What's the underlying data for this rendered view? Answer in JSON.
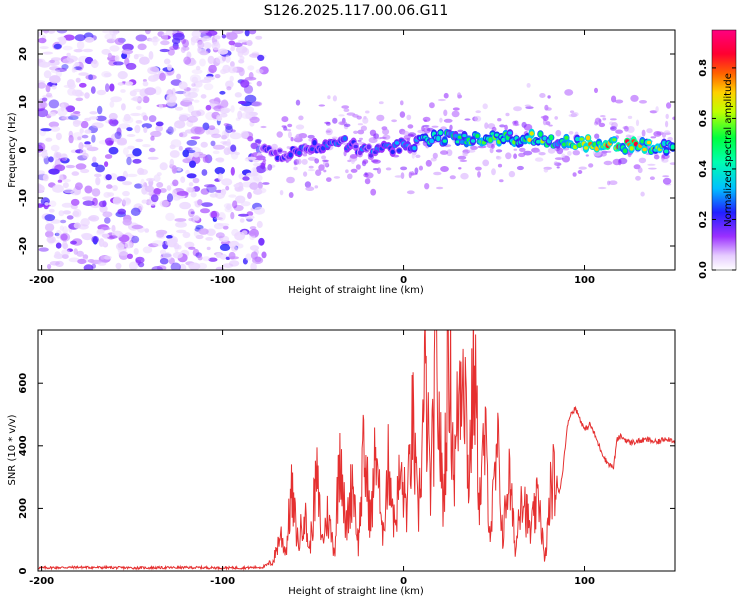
{
  "title": "S126.2025.117.00.06.G11",
  "chart_data": [
    {
      "type": "heatmap",
      "xlabel": "Height of straight line (km)",
      "ylabel": "Frequency (Hz)",
      "xlim": [
        -202,
        150
      ],
      "ylim": [
        -25,
        25
      ],
      "xticks": [
        -200,
        -100,
        0,
        100
      ],
      "yticks": [
        -20,
        -10,
        0,
        10,
        20
      ],
      "colorbar": {
        "label": "Normalized spectral amplitude",
        "range": [
          0.0,
          0.95
        ],
        "ticks": [
          0.0,
          0.2,
          0.4,
          0.6,
          0.8
        ],
        "colors": [
          "#ffffff",
          "#d9b3ff",
          "#9b30ff",
          "#2020ff",
          "#00e5ff",
          "#00ff40",
          "#ffff00",
          "#ff8000",
          "#ff0040",
          "#ff0080"
        ]
      },
      "noise_region_end_km": -77,
      "ridge": [
        {
          "x": -78,
          "f": 0.0,
          "amp": 0.22
        },
        {
          "x": -65,
          "f": -1.0,
          "amp": 0.25
        },
        {
          "x": -50,
          "f": 0.5,
          "amp": 0.3
        },
        {
          "x": -35,
          "f": 2.0,
          "amp": 0.3
        },
        {
          "x": -20,
          "f": -0.5,
          "amp": 0.3
        },
        {
          "x": 0,
          "f": 1.0,
          "amp": 0.33
        },
        {
          "x": 20,
          "f": 2.5,
          "amp": 0.5
        },
        {
          "x": 40,
          "f": 2.5,
          "amp": 0.6
        },
        {
          "x": 60,
          "f": 2.5,
          "amp": 0.6
        },
        {
          "x": 70,
          "f": 2.5,
          "amp": 0.75
        },
        {
          "x": 85,
          "f": 1.8,
          "amp": 0.5
        },
        {
          "x": 100,
          "f": 1.5,
          "amp": 0.8
        },
        {
          "x": 127,
          "f": 0.8,
          "amp": 0.9
        },
        {
          "x": 150,
          "f": 0.5,
          "amp": 0.5
        }
      ]
    },
    {
      "type": "line",
      "xlabel": "Height of straight line (km)",
      "ylabel": "SNR (10 * v/v)",
      "xlim": [
        -202,
        150
      ],
      "ylim": [
        0,
        770
      ],
      "xticks": [
        -200,
        -100,
        0,
        100
      ],
      "yticks": [
        0,
        200,
        400,
        600
      ],
      "series": [
        {
          "name": "SNR",
          "color": "#e53030",
          "x": [
            -202,
            -180,
            -150,
            -120,
            -90,
            -78,
            -72,
            -68,
            -65,
            -62,
            -58,
            -55,
            -52,
            -48,
            -45,
            -42,
            -38,
            -35,
            -32,
            -28,
            -25,
            -22,
            -18,
            -15,
            -12,
            -8,
            -5,
            -2,
            2,
            5,
            8,
            12,
            15,
            18,
            22,
            25,
            28,
            30,
            33,
            36,
            39,
            42,
            45,
            48,
            52,
            55,
            58,
            62,
            65,
            70,
            75,
            78,
            82,
            86,
            88,
            90,
            92,
            95,
            98,
            100,
            103,
            106,
            108,
            112,
            116,
            118,
            120,
            125,
            130,
            135,
            140,
            145,
            150
          ],
          "y": [
            10,
            12,
            10,
            11,
            10,
            12,
            30,
            120,
            60,
            250,
            80,
            200,
            60,
            300,
            90,
            180,
            60,
            440,
            120,
            300,
            80,
            380,
            150,
            420,
            100,
            360,
            140,
            300,
            200,
            480,
            160,
            600,
            250,
            660,
            200,
            740,
            300,
            510,
            760,
            280,
            680,
            220,
            420,
            120,
            380,
            100,
            320,
            60,
            280,
            120,
            240,
            20,
            300,
            250,
            320,
            440,
            500,
            520,
            480,
            450,
            470,
            430,
            400,
            350,
            330,
            420,
            430,
            410,
            415,
            420,
            410,
            425,
            415
          ]
        }
      ]
    }
  ]
}
